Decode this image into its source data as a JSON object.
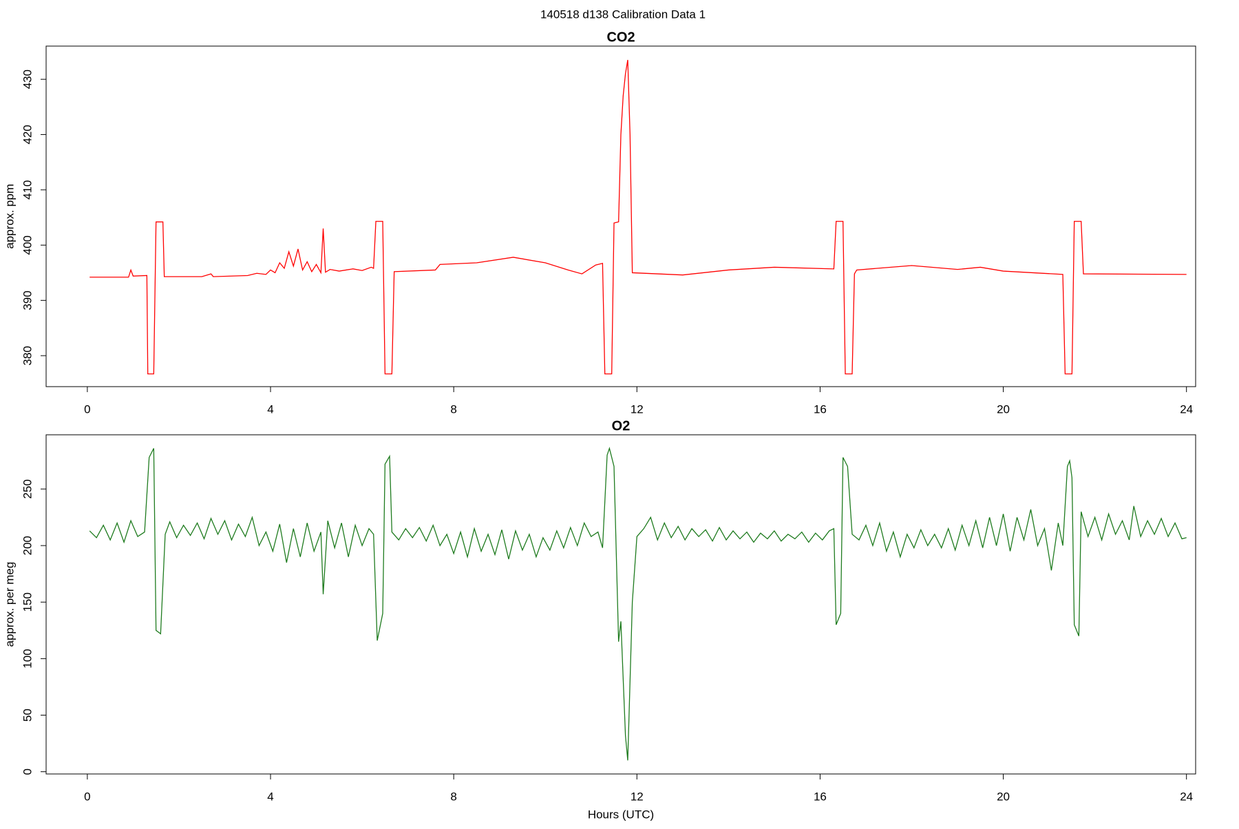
{
  "title": "140518   d138   Calibration Data 1",
  "chart_data": [
    {
      "type": "line",
      "title": "CO2",
      "y_label": "approx. ppm",
      "x": [
        0.05,
        0.9,
        0.95,
        1.0,
        1.3,
        1.32,
        1.45,
        1.5,
        1.65,
        1.68,
        2.5,
        2.7,
        2.75,
        3.5,
        3.7,
        3.9,
        4.0,
        4.1,
        4.2,
        4.3,
        4.4,
        4.5,
        4.6,
        4.7,
        4.8,
        4.9,
        5.0,
        5.1,
        5.15,
        5.2,
        5.3,
        5.5,
        5.8,
        6.0,
        6.2,
        6.25,
        6.3,
        6.45,
        6.5,
        6.65,
        6.7,
        7.6,
        7.7,
        8.5,
        9.3,
        10.0,
        10.5,
        10.8,
        11.1,
        11.25,
        11.3,
        11.45,
        11.5,
        11.6,
        11.65,
        11.7,
        11.75,
        11.8,
        11.85,
        11.9,
        13.0,
        14.0,
        15.0,
        16.3,
        16.35,
        16.5,
        16.55,
        16.7,
        16.75,
        16.8,
        18.0,
        19.0,
        19.5,
        20.0,
        21.3,
        21.35,
        21.5,
        21.55,
        21.7,
        21.75,
        24.0
      ],
      "series": [
        {
          "name": "CO2",
          "color": "#ff0000",
          "values": [
            394.2,
            394.2,
            395.5,
            394.4,
            394.5,
            376.7,
            376.7,
            404.2,
            404.2,
            394.3,
            394.3,
            394.8,
            394.3,
            394.5,
            394.9,
            394.7,
            395.5,
            395.0,
            396.8,
            395.8,
            398.8,
            396.2,
            399.3,
            395.5,
            397.0,
            395.2,
            396.5,
            395.0,
            403.0,
            395.1,
            395.6,
            395.3,
            395.7,
            395.4,
            396.0,
            395.8,
            404.3,
            404.3,
            376.7,
            376.7,
            395.2,
            395.5,
            396.5,
            396.8,
            397.8,
            396.8,
            395.5,
            394.8,
            396.4,
            396.7,
            376.7,
            376.7,
            404.0,
            404.2,
            420.0,
            427.0,
            431.0,
            433.5,
            420.0,
            395.0,
            394.6,
            395.5,
            396.0,
            395.7,
            404.3,
            404.3,
            376.7,
            376.7,
            394.8,
            395.5,
            396.3,
            395.6,
            396.0,
            395.3,
            394.7,
            376.7,
            376.7,
            404.3,
            404.3,
            394.8,
            394.7
          ]
        }
      ],
      "xlim": [
        -0.9,
        24.2
      ],
      "xticks": [
        0,
        4,
        8,
        12,
        16,
        20,
        24
      ],
      "ylim": [
        374.4,
        436
      ],
      "yticks": [
        380,
        390,
        400,
        410,
        420,
        430
      ]
    },
    {
      "type": "line",
      "title": "O2",
      "y_label": "approx. per meg",
      "x_label": "Hours (UTC)",
      "x": [
        0.05,
        0.2,
        0.35,
        0.5,
        0.65,
        0.8,
        0.95,
        1.1,
        1.25,
        1.35,
        1.45,
        1.5,
        1.6,
        1.7,
        1.8,
        1.95,
        2.1,
        2.25,
        2.4,
        2.55,
        2.7,
        2.85,
        3.0,
        3.15,
        3.3,
        3.45,
        3.6,
        3.75,
        3.9,
        4.05,
        4.2,
        4.35,
        4.5,
        4.65,
        4.8,
        4.95,
        5.1,
        5.15,
        5.25,
        5.4,
        5.55,
        5.7,
        5.85,
        6.0,
        6.15,
        6.25,
        6.33,
        6.45,
        6.5,
        6.6,
        6.65,
        6.8,
        6.95,
        7.1,
        7.25,
        7.4,
        7.55,
        7.7,
        7.85,
        8.0,
        8.15,
        8.3,
        8.45,
        8.6,
        8.75,
        8.9,
        9.05,
        9.2,
        9.35,
        9.5,
        9.65,
        9.8,
        9.95,
        10.1,
        10.25,
        10.4,
        10.55,
        10.7,
        10.85,
        11.0,
        11.15,
        11.25,
        11.35,
        11.4,
        11.5,
        11.6,
        11.65,
        11.75,
        11.8,
        11.9,
        12.0,
        12.15,
        12.3,
        12.45,
        12.6,
        12.75,
        12.9,
        13.05,
        13.2,
        13.35,
        13.5,
        13.65,
        13.8,
        13.95,
        14.1,
        14.25,
        14.4,
        14.55,
        14.7,
        14.85,
        15.0,
        15.15,
        15.3,
        15.45,
        15.6,
        15.75,
        15.9,
        16.05,
        16.2,
        16.3,
        16.35,
        16.45,
        16.5,
        16.6,
        16.7,
        16.85,
        17.0,
        17.15,
        17.3,
        17.45,
        17.6,
        17.75,
        17.9,
        18.05,
        18.2,
        18.35,
        18.5,
        18.65,
        18.8,
        18.95,
        19.1,
        19.25,
        19.4,
        19.55,
        19.7,
        19.85,
        20.0,
        20.15,
        20.3,
        20.45,
        20.6,
        20.75,
        20.9,
        21.05,
        21.2,
        21.3,
        21.4,
        21.45,
        21.5,
        21.55,
        21.65,
        21.7,
        21.85,
        22.0,
        22.15,
        22.3,
        22.45,
        22.6,
        22.75,
        22.85,
        23.0,
        23.15,
        23.3,
        23.45,
        23.6,
        23.75,
        23.9,
        24.0
      ],
      "series": [
        {
          "name": "O2",
          "color": "#1e7b1e",
          "values": [
            213,
            207,
            218,
            205,
            220,
            203,
            222,
            208,
            212,
            278,
            286,
            125,
            122,
            210,
            221,
            207,
            218,
            209,
            220,
            206,
            224,
            210,
            222,
            205,
            219,
            208,
            225,
            200,
            212,
            195,
            219,
            185,
            215,
            190,
            220,
            195,
            212,
            157,
            222,
            198,
            220,
            190,
            218,
            200,
            215,
            210,
            116,
            140,
            272,
            279,
            212,
            205,
            215,
            207,
            216,
            204,
            218,
            200,
            210,
            193,
            212,
            190,
            215,
            195,
            210,
            192,
            214,
            188,
            213,
            196,
            210,
            190,
            207,
            196,
            213,
            198,
            216,
            200,
            220,
            208,
            212,
            198,
            280,
            286,
            270,
            115,
            133,
            32,
            10,
            150,
            208,
            215,
            225,
            205,
            220,
            207,
            217,
            205,
            215,
            208,
            214,
            204,
            216,
            205,
            213,
            206,
            212,
            203,
            211,
            206,
            213,
            204,
            210,
            206,
            212,
            203,
            211,
            205,
            213,
            215,
            130,
            140,
            278,
            270,
            210,
            205,
            218,
            200,
            220,
            195,
            212,
            190,
            210,
            198,
            214,
            200,
            210,
            198,
            215,
            196,
            218,
            200,
            222,
            198,
            225,
            200,
            228,
            195,
            225,
            205,
            232,
            200,
            215,
            178,
            220,
            200,
            270,
            275,
            260,
            130,
            120,
            230,
            208,
            225,
            205,
            228,
            210,
            222,
            205,
            235,
            208,
            222,
            210,
            224,
            208,
            220,
            206,
            207
          ]
        }
      ],
      "xlim": [
        -0.9,
        24.2
      ],
      "xticks": [
        0,
        4,
        8,
        12,
        16,
        20,
        24
      ],
      "ylim": [
        -2,
        298
      ],
      "yticks": [
        0,
        50,
        100,
        150,
        200,
        250
      ]
    }
  ]
}
